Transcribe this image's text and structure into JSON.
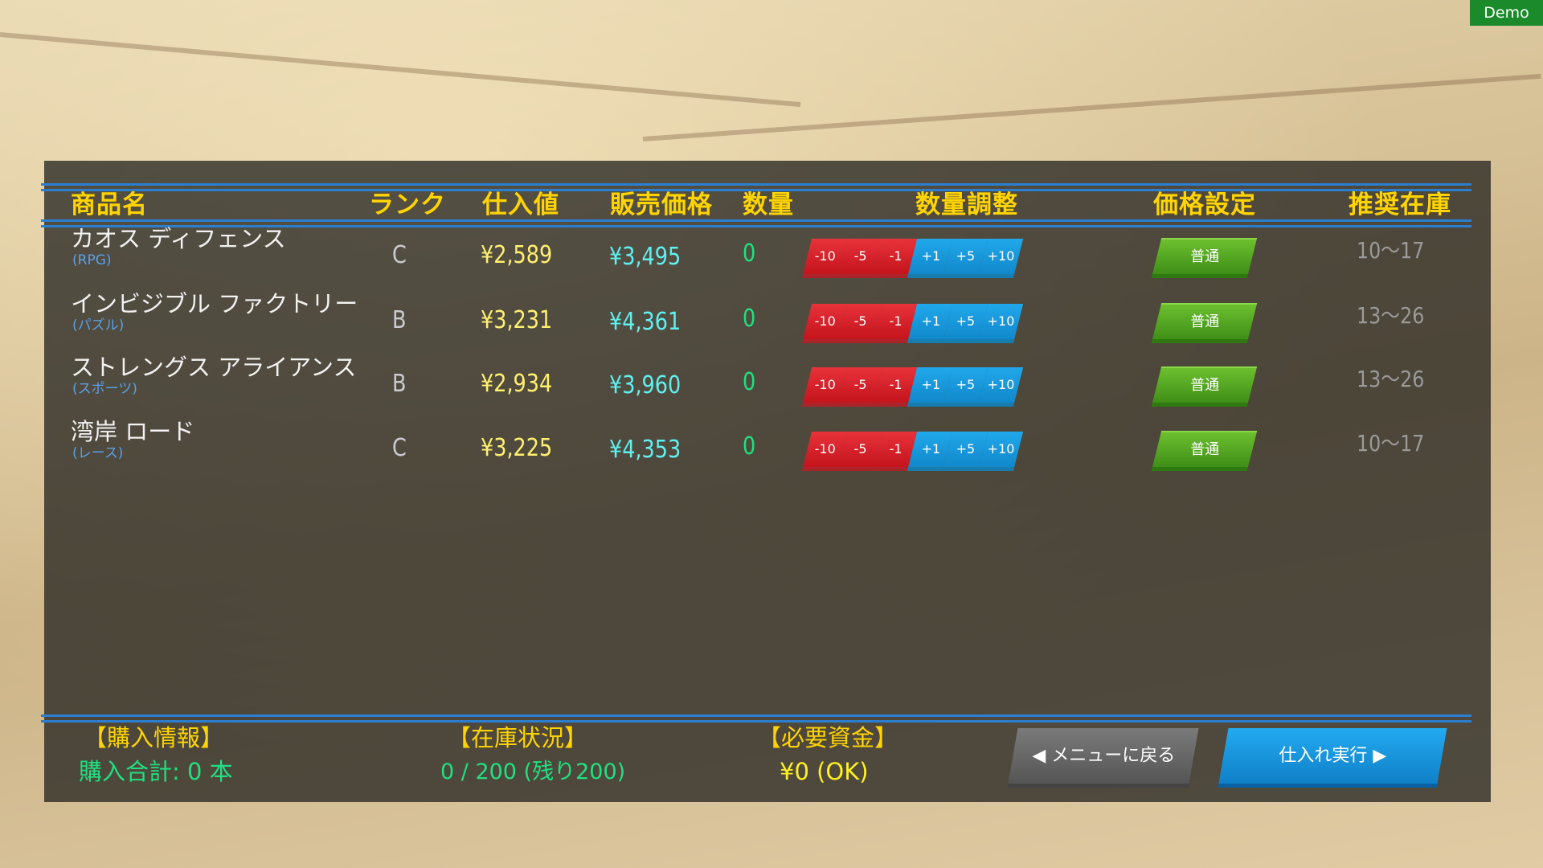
{
  "headers": {
    "name": "商品名",
    "rank": "ランク",
    "buy": "仕入値",
    "sell": "販売価格",
    "qty": "数量",
    "adjust": "数量調整",
    "price": "価格設定",
    "recommended": "推奨在庫"
  },
  "adjust_buttons": [
    "-10",
    "-5",
    "-1",
    "+1",
    "+5",
    "+10"
  ],
  "rows": [
    {
      "name": "カオス ディフェンス",
      "genre": "(RPG)",
      "rank": "C",
      "buy": "¥2,589",
      "sell": "¥3,495",
      "qty": "0",
      "price": "普通",
      "rec": "10〜17"
    },
    {
      "name": "インビジブル ファクトリー",
      "genre": "(パズル)",
      "rank": "B",
      "buy": "¥3,231",
      "sell": "¥4,361",
      "qty": "0",
      "price": "普通",
      "rec": "13〜26"
    },
    {
      "name": "ストレングス アライアンス",
      "genre": "(スポーツ)",
      "rank": "B",
      "buy": "¥2,934",
      "sell": "¥3,960",
      "qty": "0",
      "price": "普通",
      "rec": "13〜26"
    },
    {
      "name": "湾岸 ロード",
      "genre": "(レース)",
      "rank": "C",
      "buy": "¥3,225",
      "sell": "¥4,353",
      "qty": "0",
      "price": "普通",
      "rec": "10〜17"
    }
  ],
  "footer": {
    "purchase_title": "【購入情報】",
    "purchase_value": "購入合計: 0 本",
    "stock_title": "【在庫状況】",
    "stock_value": "0 / 200 (残り200)",
    "funds_title": "【必要資金】",
    "funds_value": "¥0 (OK)"
  },
  "buttons": {
    "back": "◀ メニューに戻る",
    "execute": "仕入れ実行 ▶"
  },
  "badge": "Demo",
  "colors": {
    "header": "#ffd400",
    "line": "#2b7fd0",
    "minus": "#d8202a",
    "plus": "#1a98dc",
    "price": "#4fa020"
  }
}
